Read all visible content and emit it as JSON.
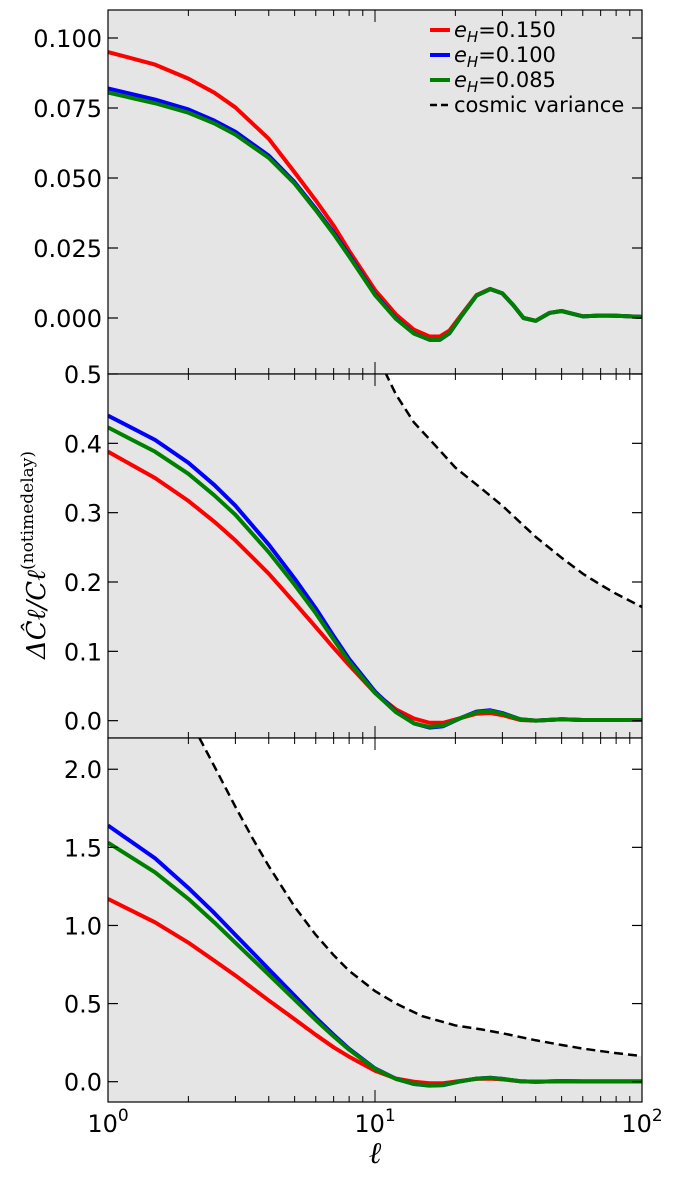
{
  "figure": {
    "ylabel": "ΔĈℓ/Cℓ(notimedelay)",
    "xlabel": "ℓ"
  },
  "legend": [
    {
      "label": "e_H=0.150",
      "color": "#ff0000",
      "dashed": false
    },
    {
      "label": "e_H=0.100",
      "color": "#0000ff",
      "dashed": false
    },
    {
      "label": "e_H=0.085",
      "color": "#008000",
      "dashed": false
    },
    {
      "label": "cosmic variance",
      "color": "#000000",
      "dashed": true
    }
  ],
  "chart_data": [
    {
      "type": "line",
      "xscale": "log",
      "xlim": [
        1,
        100
      ],
      "ylim": [
        -0.02,
        0.11
      ],
      "yticks": [
        "0.100",
        "0.075",
        "0.050",
        "0.025",
        "0.000"
      ],
      "ytick_values": [
        0.1,
        0.075,
        0.05,
        0.025,
        0.0
      ],
      "shaded_band": false,
      "series": [
        {
          "name": "e_H=0.150",
          "color": "#ff0000",
          "x": [
            1,
            1.5,
            2,
            2.5,
            3,
            4,
            5,
            6,
            7,
            8,
            10,
            12,
            14,
            16,
            17.5,
            19,
            21,
            24,
            27,
            30,
            33,
            36,
            40,
            45,
            50,
            55,
            60,
            70,
            80,
            100
          ],
          "y": [
            0.095,
            0.0905,
            0.0855,
            0.0805,
            0.0752,
            0.064,
            0.052,
            0.042,
            0.033,
            0.024,
            0.01,
            0.0012,
            -0.0042,
            -0.0066,
            -0.0066,
            -0.0045,
            0.001,
            0.0082,
            0.0104,
            0.0088,
            0.0045,
            0.0,
            -0.001,
            0.0018,
            0.0025,
            0.0015,
            0.0006,
            0.0009,
            0.0008,
            0.0004
          ]
        },
        {
          "name": "e_H=0.100",
          "color": "#0000ff",
          "x": [
            1,
            1.5,
            2,
            2.5,
            3,
            4,
            5,
            6,
            7,
            8,
            10,
            12,
            14,
            16,
            17.5,
            19,
            21,
            24,
            27,
            30,
            33,
            36,
            40,
            45,
            50,
            55,
            60,
            70,
            80,
            100
          ],
          "y": [
            0.082,
            0.078,
            0.0745,
            0.0705,
            0.0665,
            0.058,
            0.0485,
            0.039,
            0.0305,
            0.0225,
            0.0085,
            -0.0002,
            -0.0055,
            -0.0078,
            -0.0078,
            -0.0055,
            0.0005,
            0.008,
            0.0103,
            0.0088,
            0.0045,
            0.0,
            -0.001,
            0.0018,
            0.0025,
            0.0015,
            0.0006,
            0.0009,
            0.0008,
            0.0004
          ]
        },
        {
          "name": "e_H=0.085",
          "color": "#008000",
          "x": [
            1,
            1.5,
            2,
            2.5,
            3,
            4,
            5,
            6,
            7,
            8,
            10,
            12,
            14,
            16,
            17.5,
            19,
            21,
            24,
            27,
            30,
            33,
            36,
            40,
            45,
            50,
            55,
            60,
            70,
            80,
            100
          ],
          "y": [
            0.0805,
            0.0767,
            0.0733,
            0.0695,
            0.0655,
            0.0572,
            0.048,
            0.0385,
            0.03,
            0.022,
            0.0082,
            -0.0004,
            -0.0056,
            -0.0077,
            -0.0077,
            -0.0054,
            0.0006,
            0.008,
            0.0103,
            0.0088,
            0.0045,
            0.0,
            -0.001,
            0.0018,
            0.0025,
            0.0015,
            0.0006,
            0.0009,
            0.0008,
            0.0004
          ]
        }
      ]
    },
    {
      "type": "line",
      "xscale": "log",
      "xlim": [
        1,
        100
      ],
      "ylim": [
        -0.025,
        0.5
      ],
      "yticks": [
        "0.5",
        "0.4",
        "0.3",
        "0.2",
        "0.1",
        "0.0"
      ],
      "ytick_values": [
        0.5,
        0.4,
        0.3,
        0.2,
        0.1,
        0.0
      ],
      "shaded_band": true,
      "series": [
        {
          "name": "e_H=0.150",
          "color": "#ff0000",
          "x": [
            1,
            1.5,
            2,
            2.5,
            3,
            4,
            5,
            6,
            7,
            8,
            10,
            12,
            14,
            16,
            18,
            21,
            24,
            27,
            30,
            35,
            40,
            50,
            60,
            80,
            100
          ],
          "y": [
            0.388,
            0.35,
            0.317,
            0.287,
            0.26,
            0.212,
            0.17,
            0.135,
            0.105,
            0.08,
            0.04,
            0.016,
            0.003,
            -0.003,
            -0.003,
            0.004,
            0.01,
            0.011,
            0.008,
            0.001,
            0.0,
            0.002,
            0.001,
            0.001,
            0.001
          ]
        },
        {
          "name": "e_H=0.100",
          "color": "#0000ff",
          "x": [
            1,
            1.5,
            2,
            2.5,
            3,
            4,
            5,
            6,
            7,
            8,
            10,
            12,
            14,
            16,
            18,
            21,
            24,
            27,
            30,
            35,
            40,
            50,
            60,
            80,
            100
          ],
          "y": [
            0.44,
            0.405,
            0.372,
            0.34,
            0.31,
            0.254,
            0.205,
            0.162,
            0.122,
            0.089,
            0.042,
            0.013,
            -0.004,
            -0.01,
            -0.008,
            0.004,
            0.013,
            0.015,
            0.011,
            0.002,
            0.0,
            0.002,
            0.001,
            0.001,
            0.001
          ]
        },
        {
          "name": "e_H=0.085",
          "color": "#008000",
          "x": [
            1,
            1.5,
            2,
            2.5,
            3,
            4,
            5,
            6,
            7,
            8,
            10,
            12,
            14,
            16,
            18,
            21,
            24,
            27,
            30,
            35,
            40,
            50,
            60,
            80,
            100
          ],
          "y": [
            0.423,
            0.388,
            0.356,
            0.325,
            0.297,
            0.243,
            0.196,
            0.155,
            0.117,
            0.085,
            0.04,
            0.012,
            -0.004,
            -0.009,
            -0.007,
            0.004,
            0.012,
            0.014,
            0.01,
            0.002,
            0.0,
            0.002,
            0.001,
            0.001,
            0.001
          ]
        },
        {
          "name": "cosmic variance",
          "color": "#000000",
          "dashed": true,
          "x": [
            10,
            11,
            12,
            14,
            17,
            20,
            25,
            30,
            40,
            50,
            60,
            70,
            80,
            100
          ],
          "y": [
            0.54,
            0.5,
            0.47,
            0.43,
            0.395,
            0.365,
            0.335,
            0.31,
            0.265,
            0.235,
            0.212,
            0.196,
            0.183,
            0.164
          ]
        }
      ]
    },
    {
      "type": "line",
      "xscale": "log",
      "xlim": [
        1,
        100
      ],
      "ylim": [
        -0.13,
        2.2
      ],
      "yticks": [
        "2.0",
        "1.5",
        "1.0",
        "0.5",
        "0.0"
      ],
      "ytick_values": [
        2.0,
        1.5,
        1.0,
        0.5,
        0.0
      ],
      "shaded_band": true,
      "series": [
        {
          "name": "e_H=0.150",
          "color": "#ff0000",
          "x": [
            1,
            1.5,
            2,
            2.5,
            3,
            4,
            5,
            6,
            7,
            8,
            10,
            12,
            14,
            16,
            18,
            21,
            24,
            27,
            30,
            35,
            40,
            50,
            60,
            80,
            100
          ],
          "y": [
            1.17,
            1.02,
            0.89,
            0.775,
            0.68,
            0.52,
            0.4,
            0.3,
            0.22,
            0.16,
            0.07,
            0.02,
            0.0,
            -0.01,
            -0.01,
            0.005,
            0.018,
            0.02,
            0.015,
            0.003,
            0.0,
            0.004,
            0.002,
            0.002,
            0.002
          ]
        },
        {
          "name": "e_H=0.100",
          "color": "#0000ff",
          "x": [
            1,
            1.5,
            2,
            2.5,
            3,
            4,
            5,
            6,
            7,
            8,
            10,
            12,
            14,
            16,
            18,
            21,
            24,
            27,
            30,
            35,
            40,
            50,
            60,
            80,
            100
          ],
          "y": [
            1.64,
            1.43,
            1.24,
            1.08,
            0.94,
            0.72,
            0.55,
            0.41,
            0.3,
            0.21,
            0.085,
            0.018,
            -0.015,
            -0.025,
            -0.022,
            0.003,
            0.02,
            0.025,
            0.018,
            0.003,
            0.0,
            0.004,
            0.002,
            0.002,
            0.002
          ]
        },
        {
          "name": "e_H=0.085",
          "color": "#008000",
          "x": [
            1,
            1.5,
            2,
            2.5,
            3,
            4,
            5,
            6,
            7,
            8,
            10,
            12,
            14,
            16,
            18,
            21,
            24,
            27,
            30,
            35,
            40,
            50,
            60,
            80,
            100
          ],
          "y": [
            1.53,
            1.34,
            1.17,
            1.02,
            0.89,
            0.685,
            0.525,
            0.395,
            0.29,
            0.205,
            0.082,
            0.017,
            -0.014,
            -0.024,
            -0.021,
            0.003,
            0.02,
            0.024,
            0.018,
            0.003,
            0.0,
            0.004,
            0.002,
            0.002,
            0.002
          ]
        },
        {
          "name": "cosmic variance",
          "color": "#000000",
          "dashed": true,
          "x": [
            2.2,
            2.5,
            3,
            3.5,
            4,
            5,
            6,
            7,
            8,
            10,
            12,
            15,
            20,
            25,
            30,
            40,
            50,
            60,
            70,
            80,
            100
          ],
          "y": [
            2.2,
            2.02,
            1.76,
            1.55,
            1.38,
            1.12,
            0.94,
            0.81,
            0.71,
            0.58,
            0.5,
            0.42,
            0.36,
            0.335,
            0.31,
            0.265,
            0.235,
            0.212,
            0.196,
            0.183,
            0.164
          ]
        }
      ]
    }
  ],
  "xaxis": {
    "ticks": [
      {
        "value": 1,
        "base": "10",
        "exp": "0"
      },
      {
        "value": 10,
        "base": "10",
        "exp": "1"
      },
      {
        "value": 100,
        "base": "10",
        "exp": "2"
      }
    ]
  }
}
